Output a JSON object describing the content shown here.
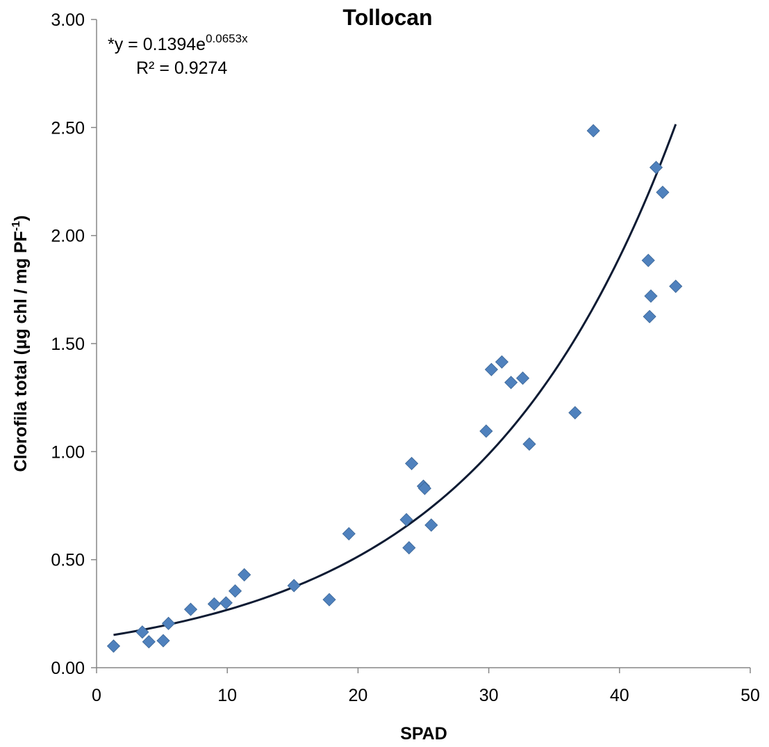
{
  "chart_data": {
    "type": "scatter",
    "title": "Tollocan",
    "xlabel": "SPAD",
    "ylabel": "Clorofila total (µg  chl / mg PF",
    "ylabel_sup": "-1",
    "ylabel_end": ")",
    "xlim": [
      0,
      50
    ],
    "ylim": [
      0,
      3
    ],
    "x_ticks": [
      0,
      10,
      20,
      30,
      40,
      50
    ],
    "x_tick_labels": [
      "0",
      "10",
      "20",
      "30",
      "40",
      "50"
    ],
    "y_ticks": [
      0,
      0.5,
      1.0,
      1.5,
      2.0,
      2.5,
      3.0
    ],
    "y_tick_labels": [
      "0.00",
      "0.50",
      "1.00",
      "1.50",
      "2.00",
      "2.50",
      "3.00"
    ],
    "grid": false,
    "legend": "none",
    "marker_color": "#4F81BD",
    "trend_color": "#0D1B33",
    "equation_prefix": "*y = 0.1394e",
    "equation_exp": "0.0653x",
    "r2_label": "R² = 0.9274",
    "trendline": {
      "type": "exponential",
      "a": 0.1394,
      "b": 0.0653,
      "x_range": [
        1.3,
        44.3
      ]
    },
    "points": [
      {
        "x": 1.3,
        "y": 0.1
      },
      {
        "x": 3.5,
        "y": 0.165
      },
      {
        "x": 4.0,
        "y": 0.12
      },
      {
        "x": 5.1,
        "y": 0.125
      },
      {
        "x": 5.5,
        "y": 0.205
      },
      {
        "x": 7.2,
        "y": 0.27
      },
      {
        "x": 9.0,
        "y": 0.295
      },
      {
        "x": 9.9,
        "y": 0.3
      },
      {
        "x": 10.6,
        "y": 0.355
      },
      {
        "x": 11.3,
        "y": 0.43
      },
      {
        "x": 15.1,
        "y": 0.38
      },
      {
        "x": 17.8,
        "y": 0.315
      },
      {
        "x": 19.3,
        "y": 0.62
      },
      {
        "x": 23.7,
        "y": 0.685
      },
      {
        "x": 23.9,
        "y": 0.555
      },
      {
        "x": 24.1,
        "y": 0.945
      },
      {
        "x": 25.0,
        "y": 0.84
      },
      {
        "x": 25.1,
        "y": 0.83
      },
      {
        "x": 25.6,
        "y": 0.66
      },
      {
        "x": 29.8,
        "y": 1.095
      },
      {
        "x": 30.2,
        "y": 1.38
      },
      {
        "x": 31.0,
        "y": 1.415
      },
      {
        "x": 31.7,
        "y": 1.32
      },
      {
        "x": 32.6,
        "y": 1.34
      },
      {
        "x": 33.1,
        "y": 1.035
      },
      {
        "x": 36.6,
        "y": 1.18
      },
      {
        "x": 38.0,
        "y": 2.485
      },
      {
        "x": 42.2,
        "y": 1.885
      },
      {
        "x": 42.3,
        "y": 1.625
      },
      {
        "x": 42.4,
        "y": 1.72
      },
      {
        "x": 42.8,
        "y": 2.315
      },
      {
        "x": 43.3,
        "y": 2.2
      },
      {
        "x": 44.3,
        "y": 1.765
      }
    ]
  }
}
